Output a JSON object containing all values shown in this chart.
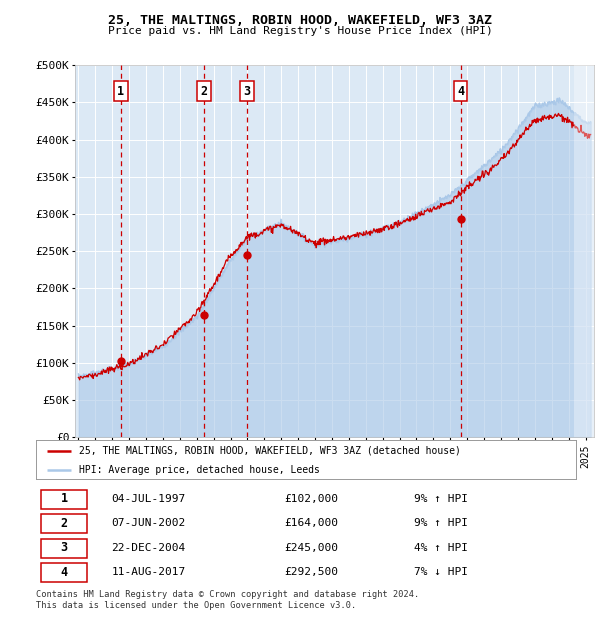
{
  "title": "25, THE MALTINGS, ROBIN HOOD, WAKEFIELD, WF3 3AZ",
  "subtitle": "Price paid vs. HM Land Registry's House Price Index (HPI)",
  "ylabel_ticks": [
    "£0",
    "£50K",
    "£100K",
    "£150K",
    "£200K",
    "£250K",
    "£300K",
    "£350K",
    "£400K",
    "£450K",
    "£500K"
  ],
  "ytick_values": [
    0,
    50000,
    100000,
    150000,
    200000,
    250000,
    300000,
    350000,
    400000,
    450000,
    500000
  ],
  "xlim": [
    1994.8,
    2025.5
  ],
  "ylim": [
    0,
    500000
  ],
  "background_color": "#dce9f5",
  "grid_color": "#ffffff",
  "hpi_color": "#aac8e8",
  "sale_color": "#cc0000",
  "transactions": [
    {
      "num": 1,
      "date": "04-JUL-1997",
      "x": 1997.5,
      "price": 102000,
      "pct": "9%",
      "dir": "↑"
    },
    {
      "num": 2,
      "date": "07-JUN-2002",
      "x": 2002.44,
      "price": 164000,
      "pct": "9%",
      "dir": "↑"
    },
    {
      "num": 3,
      "date": "22-DEC-2004",
      "x": 2004.98,
      "price": 245000,
      "pct": "4%",
      "dir": "↑"
    },
    {
      "num": 4,
      "date": "11-AUG-2017",
      "x": 2017.61,
      "price": 292500,
      "pct": "7%",
      "dir": "↓"
    }
  ],
  "legend_label_red": "25, THE MALTINGS, ROBIN HOOD, WAKEFIELD, WF3 3AZ (detached house)",
  "legend_label_blue": "HPI: Average price, detached house, Leeds",
  "footer": "Contains HM Land Registry data © Crown copyright and database right 2024.\nThis data is licensed under the Open Government Licence v3.0.",
  "table_rows": [
    [
      "1",
      "04-JUL-1997",
      "£102,000",
      "9% ↑ HPI"
    ],
    [
      "2",
      "07-JUN-2002",
      "£164,000",
      "9% ↑ HPI"
    ],
    [
      "3",
      "22-DEC-2004",
      "£245,000",
      "4% ↑ HPI"
    ],
    [
      "4",
      "11-AUG-2017",
      "£292,500",
      "7% ↓ HPI"
    ]
  ]
}
